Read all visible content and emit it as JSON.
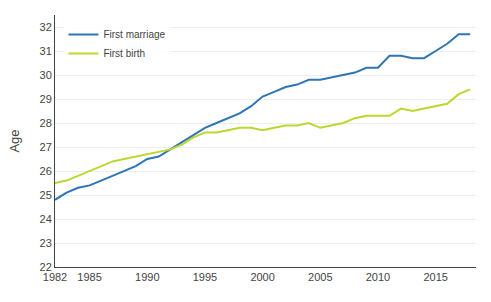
{
  "chart_data": {
    "type": "line",
    "ylabel": "Age",
    "x": [
      1982,
      1983,
      1984,
      1985,
      1986,
      1987,
      1988,
      1989,
      1990,
      1991,
      1992,
      1993,
      1994,
      1995,
      1996,
      1997,
      1998,
      1999,
      2000,
      2001,
      2002,
      2003,
      2004,
      2005,
      2006,
      2007,
      2008,
      2009,
      2010,
      2011,
      2012,
      2013,
      2014,
      2015,
      2016,
      2017,
      2018
    ],
    "series": [
      {
        "name": "First marriage",
        "color": "#2e75b6",
        "values": [
          24.8,
          25.1,
          25.3,
          25.4,
          25.6,
          25.8,
          26.0,
          26.2,
          26.5,
          26.6,
          26.9,
          27.2,
          27.5,
          27.8,
          28.0,
          28.2,
          28.4,
          28.7,
          29.1,
          29.3,
          29.5,
          29.6,
          29.8,
          29.8,
          29.9,
          30.0,
          30.1,
          30.3,
          30.3,
          30.8,
          30.8,
          30.7,
          30.7,
          31.0,
          31.3,
          31.7,
          31.7
        ]
      },
      {
        "name": "First birth",
        "color": "#bdd730",
        "values": [
          25.5,
          25.6,
          25.8,
          26.0,
          26.2,
          26.4,
          26.5,
          26.6,
          26.7,
          26.8,
          26.9,
          27.1,
          27.4,
          27.6,
          27.6,
          27.7,
          27.8,
          27.8,
          27.7,
          27.8,
          27.9,
          27.9,
          28.0,
          27.8,
          27.9,
          28.0,
          28.2,
          28.3,
          28.3,
          28.3,
          28.6,
          28.5,
          28.6,
          28.7,
          28.8,
          29.2,
          29.4
        ]
      }
    ],
    "xlim": [
      1982,
      2018.5
    ],
    "xticks": [
      1982,
      1985,
      1990,
      1995,
      2000,
      2005,
      2010,
      2015
    ],
    "ylim": [
      22,
      32.5
    ],
    "yticks": [
      22,
      23,
      24,
      25,
      26,
      27,
      28,
      29,
      30,
      31,
      32
    ],
    "grid": "y",
    "legend": "upper left"
  }
}
